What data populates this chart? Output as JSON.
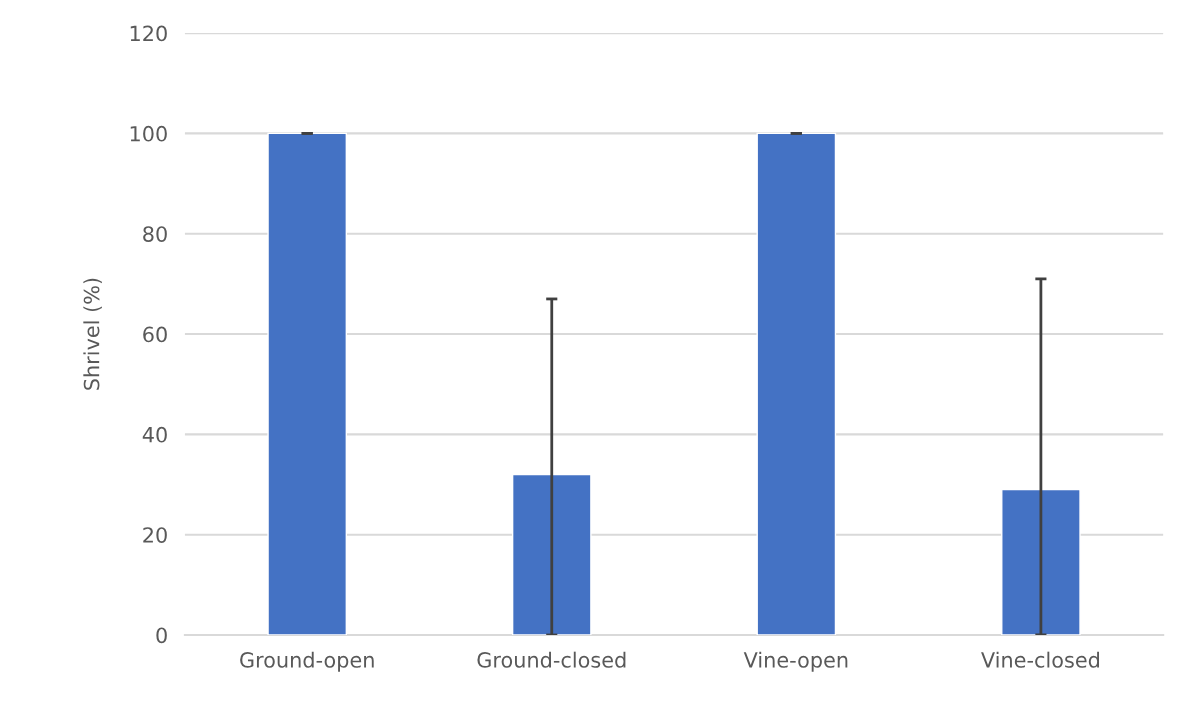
{
  "chart_data": {
    "type": "bar",
    "ylabel": "Shrivel (%)",
    "categories": [
      "Ground-open",
      "Ground-closed",
      "Vine-open",
      "Vine-closed"
    ],
    "values": [
      100,
      32,
      100,
      29
    ],
    "errors": [
      0,
      [
        0,
        67
      ],
      0,
      [
        0,
        71
      ]
    ],
    "color": "#4472c4",
    "ylim": [
      0,
      120
    ],
    "yticks": [
      0,
      20,
      40,
      60,
      80,
      100,
      120
    ],
    "grid": "y"
  }
}
